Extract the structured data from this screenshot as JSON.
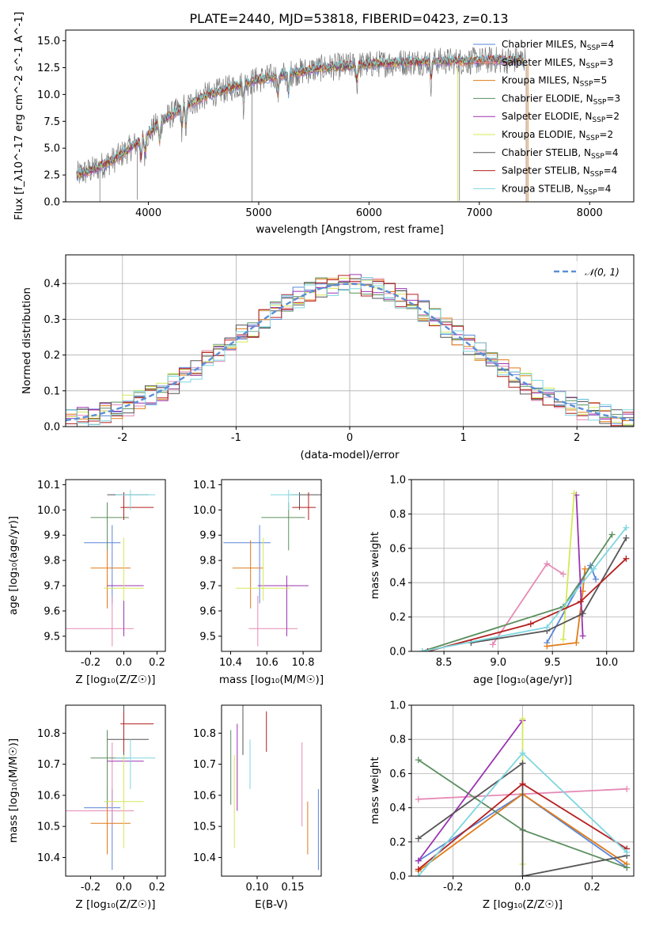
{
  "title": "PLATE=2440, MJD=53818, FIBERID=0423, z=0.13",
  "colors": {
    "Chabrier MILES": "#5a86d8",
    "Salpeter MILES": "#e58ab6",
    "Kroupa MILES": "#e07b18",
    "Chabrier ELODIE": "#5b8f5f",
    "Salpeter ELODIE": "#9b34b2",
    "Kroupa ELODIE": "#d6e85a",
    "Chabrier STELIB": "#555555",
    "Salpeter STELIB": "#b51f1f",
    "Kroupa STELIB": "#7ed6e0"
  },
  "chart_data": [
    {
      "type": "line",
      "id": "spectrum",
      "xlabel": "wavelength [Angstrom, rest frame]",
      "ylabel": "Flux [f_λ10^-17 erg cm^-2 s^-1 A^-1]",
      "xlim": [
        3250,
        8400
      ],
      "ylim": [
        0,
        16
      ],
      "xticks": [
        4000,
        5000,
        6000,
        7000,
        8000
      ],
      "yticks": [
        0.0,
        2.5,
        5.0,
        7.5,
        10.0,
        12.5,
        15.0
      ],
      "legend_position": "top-right",
      "spectrum_envelope": {
        "x": [
          3350,
          3500,
          3700,
          3900,
          4000,
          4100,
          4300,
          4500,
          4800,
          5000,
          5300,
          5600,
          6000,
          6300,
          6600,
          6900,
          7100,
          7300,
          7500,
          8000,
          8400
        ],
        "y": [
          2.5,
          3.0,
          4.0,
          5.5,
          6.3,
          7.4,
          8.7,
          9.8,
          10.8,
          11.4,
          12.0,
          12.5,
          12.8,
          13.0,
          13.1,
          13.1,
          13.2,
          13.2,
          13.3,
          13.4,
          13.5
        ]
      },
      "series": [
        {
          "name": "Chabrier MILES",
          "n_ssp": "4"
        },
        {
          "name": "Salpeter MILES",
          "n_ssp": "3"
        },
        {
          "name": "Kroupa MILES",
          "n_ssp": "5"
        },
        {
          "name": "Chabrier ELODIE",
          "n_ssp": "3"
        },
        {
          "name": "Salpeter ELODIE",
          "n_ssp": "2"
        },
        {
          "name": "Kroupa ELODIE",
          "n_ssp": "2"
        },
        {
          "name": "Chabrier STELIB",
          "n_ssp": "4"
        },
        {
          "name": "Salpeter STELIB",
          "n_ssp": "4"
        },
        {
          "name": "Kroupa STELIB",
          "n_ssp": "4"
        }
      ]
    },
    {
      "type": "histogram",
      "id": "residuals",
      "xlabel": "(data-model)/error",
      "ylabel": "Normed distribution",
      "xlim": [
        -2.5,
        2.5
      ],
      "ylim": [
        0,
        0.48
      ],
      "xticks": [
        -2,
        -1,
        0,
        1,
        2
      ],
      "yticks": [
        0.0,
        0.1,
        0.2,
        0.3,
        0.4
      ],
      "grid": true,
      "legend_position": "top-right",
      "reference_curve": "𝒩(0, 1)"
    },
    {
      "type": "scatter",
      "id": "age-vs-Z",
      "xlabel": "Z [log₁₀(Z/Z☉)]",
      "ylabel": "age  [log₁₀(age/yr)]",
      "xlim": [
        -0.35,
        0.25
      ],
      "ylim": [
        9.44,
        10.12
      ],
      "xticks": [
        -0.2,
        0.0,
        0.2
      ],
      "yticks": [
        9.5,
        9.6,
        9.7,
        9.8,
        9.9,
        10.0,
        10.1
      ]
    },
    {
      "type": "scatter",
      "id": "age-vs-mass",
      "xlabel": "mass [log₁₀(M/M☉)]",
      "ylabel": "",
      "xlim": [
        10.35,
        10.9
      ],
      "ylim": [
        9.44,
        10.12
      ],
      "xticks": [
        10.4,
        10.6,
        10.8
      ],
      "yticks": [
        9.5,
        9.6,
        9.7,
        9.8,
        9.9,
        10.0,
        10.1
      ]
    },
    {
      "type": "line",
      "id": "weight-vs-age",
      "xlabel": "age  [log₁₀(age/yr)]",
      "ylabel": "mass weight",
      "xlim": [
        8.2,
        10.25
      ],
      "ylim": [
        0,
        1
      ],
      "xticks": [
        8.5,
        9.0,
        9.5,
        10.0
      ],
      "yticks": [
        0.0,
        0.2,
        0.4,
        0.6,
        0.8,
        1.0
      ],
      "grid": true,
      "series": [
        {
          "name": "Chabrier MILES",
          "x": [
            9.45,
            9.85,
            9.9
          ],
          "y": [
            0.05,
            0.5,
            0.42
          ]
        },
        {
          "name": "Salpeter MILES",
          "x": [
            8.95,
            9.45,
            9.6
          ],
          "y": [
            0.04,
            0.51,
            0.45
          ]
        },
        {
          "name": "Kroupa MILES",
          "x": [
            9.45,
            9.72,
            9.78,
            9.8
          ],
          "y": [
            0.03,
            0.05,
            0.35,
            0.48
          ]
        },
        {
          "name": "Chabrier ELODIE",
          "x": [
            8.3,
            9.6,
            10.05
          ],
          "y": [
            0.0,
            0.26,
            0.68
          ]
        },
        {
          "name": "Salpeter ELODIE",
          "x": [
            9.72,
            9.78
          ],
          "y": [
            0.91,
            0.09
          ]
        },
        {
          "name": "Kroupa ELODIE",
          "x": [
            9.6,
            9.7
          ],
          "y": [
            0.07,
            0.92
          ]
        },
        {
          "name": "Chabrier STELIB",
          "x": [
            8.75,
            9.45,
            9.78,
            10.18
          ],
          "y": [
            0.05,
            0.12,
            0.22,
            0.66
          ]
        },
        {
          "name": "Salpeter STELIB",
          "x": [
            8.35,
            9.3,
            9.76,
            10.18
          ],
          "y": [
            0.0,
            0.16,
            0.29,
            0.54
          ]
        },
        {
          "name": "Kroupa STELIB",
          "x": [
            8.3,
            9.45,
            9.88,
            10.18
          ],
          "y": [
            0.0,
            0.14,
            0.48,
            0.72
          ]
        }
      ]
    },
    {
      "type": "scatter",
      "id": "mass-vs-Z",
      "xlabel": "Z [log₁₀(Z/Z☉)]",
      "ylabel": "mass [log₁₀(M/M☉)]",
      "xlim": [
        -0.35,
        0.25
      ],
      "ylim": [
        10.34,
        10.89
      ],
      "xticks": [
        -0.2,
        0.0,
        0.2
      ],
      "yticks": [
        10.4,
        10.5,
        10.6,
        10.7,
        10.8
      ]
    },
    {
      "type": "scatter",
      "id": "mass-vs-ebv",
      "xlabel": "E(B-V)",
      "ylabel": "",
      "xlim": [
        0.05,
        0.19
      ],
      "ylim": [
        10.34,
        10.89
      ],
      "xticks": [
        0.1,
        0.15
      ],
      "yticks": [
        10.4,
        10.5,
        10.6,
        10.7,
        10.8
      ]
    },
    {
      "type": "line",
      "id": "weight-vs-Z",
      "xlabel": "Z [log₁₀(Z/Z☉)]",
      "ylabel": "mass weight",
      "xlim": [
        -0.32,
        0.32
      ],
      "ylim": [
        0,
        1
      ],
      "xticks": [
        -0.2,
        0.0,
        0.2
      ],
      "yticks": [
        0.0,
        0.2,
        0.4,
        0.6,
        0.8,
        1.0
      ],
      "grid": true,
      "series": [
        {
          "name": "Chabrier MILES",
          "x": [
            -0.3,
            0.0,
            0.3
          ],
          "y": [
            0.09,
            0.48,
            0.05
          ]
        },
        {
          "name": "Salpeter MILES",
          "x": [
            -0.3,
            0.3
          ],
          "y": [
            0.45,
            0.51
          ]
        },
        {
          "name": "Kroupa MILES",
          "x": [
            -0.3,
            0.0,
            0.3
          ],
          "y": [
            0.03,
            0.48,
            0.07
          ]
        },
        {
          "name": "Chabrier ELODIE",
          "x": [
            -0.3,
            0.0,
            0.3
          ],
          "y": [
            0.68,
            0.27,
            0.05
          ]
        },
        {
          "name": "Salpeter ELODIE",
          "x": [
            -0.3,
            0.0
          ],
          "y": [
            0.09,
            0.91
          ]
        },
        {
          "name": "Kroupa ELODIE",
          "x": [
            0.0,
            0.0
          ],
          "y": [
            0.07,
            0.92
          ]
        },
        {
          "name": "Chabrier STELIB",
          "x": [
            -0.3,
            0.0,
            0.0,
            0.3
          ],
          "y": [
            0.22,
            0.66,
            0.0,
            0.12
          ]
        },
        {
          "name": "Salpeter STELIB",
          "x": [
            -0.3,
            0.0,
            0.3
          ],
          "y": [
            0.04,
            0.54,
            0.16
          ]
        },
        {
          "name": "Kroupa STELIB",
          "x": [
            -0.3,
            0.0,
            0.3
          ],
          "y": [
            0.0,
            0.72,
            0.14
          ]
        }
      ]
    }
  ],
  "estimates": [
    {
      "name": "Chabrier MILES",
      "Z": -0.07,
      "Z_err": [
        0.17,
        0.05
      ],
      "age": 9.87,
      "age_err": [
        0.24,
        0.07
      ],
      "mass": 10.56,
      "mass_err": [
        0.2,
        0.06
      ],
      "ebv": 0.186
    },
    {
      "name": "Salpeter MILES",
      "Z": -0.07,
      "Z_err": [
        0.28,
        0.13
      ],
      "age": 9.53,
      "age_err": [
        0.07,
        0.13
      ],
      "mass": 10.55,
      "mass_err": [
        0.05,
        0.22
      ],
      "ebv": 0.163
    },
    {
      "name": "Kroupa MILES",
      "Z": -0.1,
      "Z_err": [
        0.1,
        0.14
      ],
      "age": 9.77,
      "age_err": [
        0.16,
        0.11
      ],
      "mass": 10.51,
      "mass_err": [
        0.1,
        0.07
      ],
      "ebv": 0.171
    },
    {
      "name": "Chabrier ELODIE",
      "Z": -0.1,
      "Z_err": [
        0.1,
        0.13
      ],
      "age": 9.97,
      "age_err": [
        0.13,
        0.06
      ],
      "mass": 10.72,
      "mass_err": [
        0.15,
        0.09
      ],
      "ebv": 0.063
    },
    {
      "name": "Salpeter ELODIE",
      "Z": 0.0,
      "Z_err": [
        0.1,
        0.12
      ],
      "age": 9.7,
      "age_err": [
        0.2,
        0.04
      ],
      "mass": 10.71,
      "mass_err": [
        0.16,
        0.12
      ],
      "ebv": 0.072
    },
    {
      "name": "Kroupa ELODIE",
      "Z": 0.0,
      "Z_err": [
        0.12,
        0.12
      ],
      "age": 9.69,
      "age_err": [
        0.05,
        0.2
      ],
      "mass": 10.58,
      "mass_err": [
        0.15,
        0.15
      ],
      "ebv": 0.068
    },
    {
      "name": "Chabrier STELIB",
      "Z": 0.0,
      "Z_err": [
        0.1,
        0.15
      ],
      "age": 10.06,
      "age_err": [
        0.06,
        0.01
      ],
      "mass": 10.78,
      "mass_err": [
        0.05,
        0.12
      ],
      "ebv": 0.08
    },
    {
      "name": "Salpeter STELIB",
      "Z": 0.0,
      "Z_err": [
        0.02,
        0.18
      ],
      "age": 10.01,
      "age_err": [
        0.05,
        0.06
      ],
      "mass": 10.83,
      "mass_err": [
        0.09,
        0.04
      ],
      "ebv": 0.113
    },
    {
      "name": "Kroupa STELIB",
      "Z": 0.04,
      "Z_err": [
        0.09,
        0.15
      ],
      "age": 10.06,
      "age_err": [
        0.06,
        0.02
      ],
      "mass": 10.72,
      "mass_err": [
        0.1,
        0.06
      ],
      "ebv": 0.09
    }
  ]
}
